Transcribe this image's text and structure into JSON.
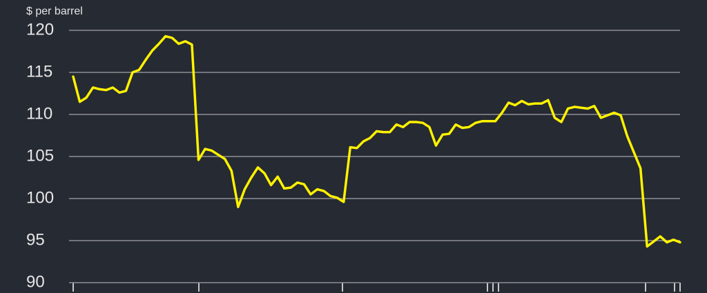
{
  "chart_data": {
    "type": "line",
    "y_label": "$ per barrel",
    "series": [
      {
        "color": "#fff200",
        "values": [
          114.5,
          111.5,
          112,
          113.2,
          113,
          112.9,
          113.2,
          112.6,
          112.8,
          115,
          115.3,
          116.5,
          117.6,
          118.4,
          119.3,
          119.1,
          118.4,
          118.7,
          118.3,
          104.6,
          105.9,
          105.7,
          105.2,
          104.7,
          103.3,
          99,
          101.1,
          102.5,
          103.7,
          103,
          101.6,
          102.6,
          101.2,
          101.3,
          101.9,
          101.7,
          100.5,
          101.1,
          100.9,
          100.3,
          100.1,
          99.6,
          106.1,
          106,
          106.8,
          107.2,
          108,
          107.9,
          107.9,
          108.8,
          108.5,
          109.1,
          109.1,
          109,
          108.5,
          106.3,
          107.6,
          107.7,
          108.8,
          108.4,
          108.5,
          109,
          109.2,
          109.2,
          109.2,
          110.2,
          111.4,
          111.1,
          111.6,
          111.2,
          111.3,
          111.3,
          111.7,
          109.6,
          109.1,
          110.7,
          110.9,
          110.8,
          110.7,
          111,
          109.6,
          109.9,
          110.2,
          109.9,
          107.4,
          105.5,
          103.6,
          94.3,
          94.9,
          95.5,
          94.8,
          95.1,
          94.8
        ]
      }
    ],
    "ylim": [
      90,
      120
    ],
    "yticks": [
      90,
      95,
      100,
      105,
      110,
      115,
      120
    ],
    "grid": true
  }
}
